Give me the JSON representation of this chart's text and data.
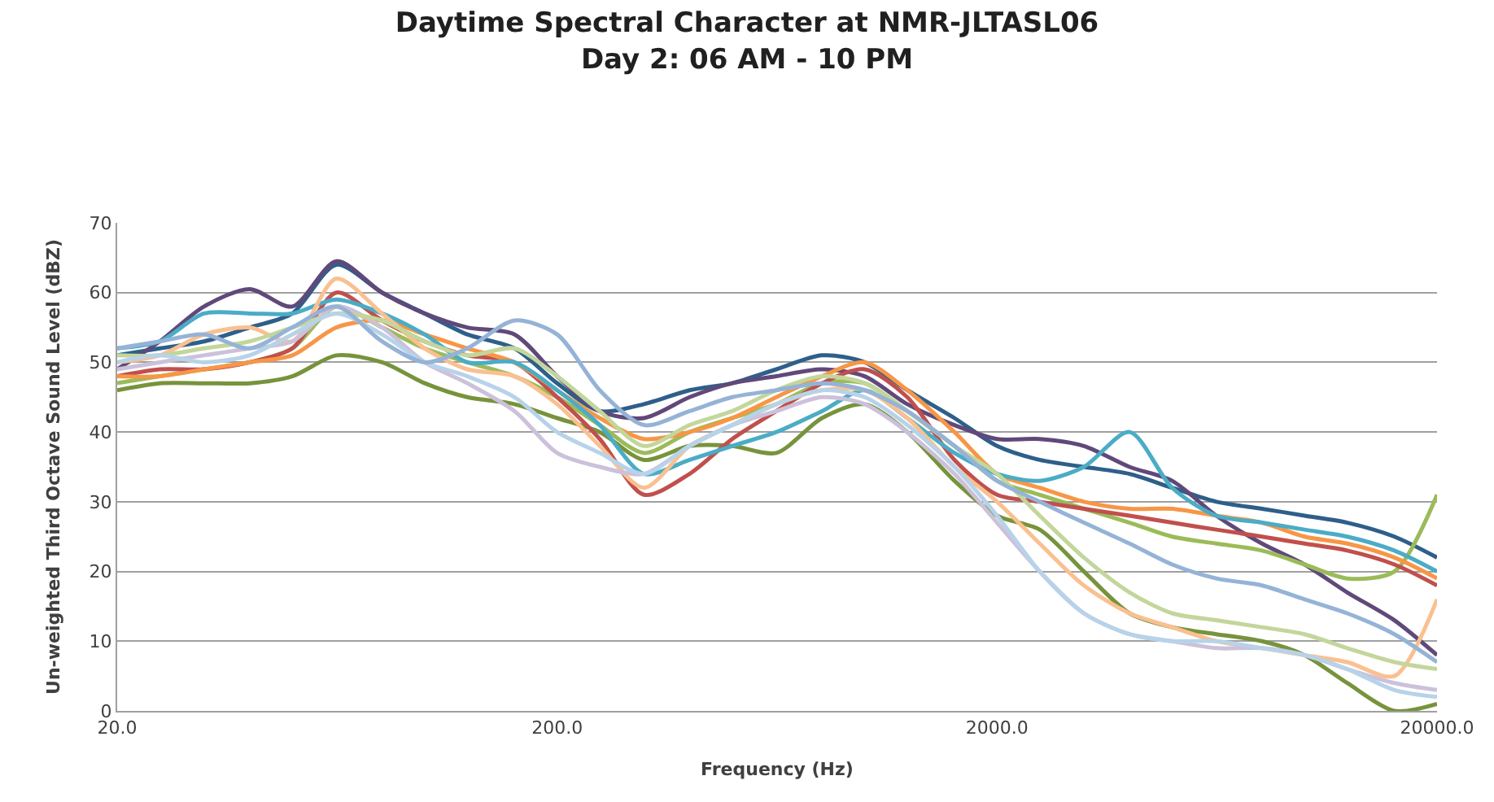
{
  "chart_data": {
    "type": "line",
    "title": "Daytime Spectral Character at NMR-JLTASL06",
    "subtitle": "Day 2: 06 AM - 10 PM",
    "xlabel": "Frequency (Hz)",
    "ylabel": "Un-weighted Third Octave Sound Level (dBZ)",
    "x": [
      20,
      25,
      31.5,
      40,
      50,
      63,
      80,
      100,
      125,
      160,
      200,
      250,
      315,
      400,
      500,
      630,
      800,
      1000,
      1250,
      1600,
      2000,
      2500,
      3150,
      4000,
      5000,
      6300,
      8000,
      10000,
      12500,
      16000,
      20000
    ],
    "series": [
      {
        "color": "#2e5f8a",
        "values": [
          51,
          52,
          53,
          55,
          57,
          64,
          60,
          57,
          54,
          52,
          47,
          43,
          44,
          46,
          47,
          49,
          51,
          50,
          46,
          42,
          38,
          36,
          35,
          34,
          32,
          30,
          29,
          28,
          27,
          25,
          22
        ]
      },
      {
        "color": "#60497a",
        "values": [
          49,
          53,
          58,
          60.5,
          58,
          64.5,
          60,
          57,
          55,
          54,
          48,
          43,
          42,
          45,
          47,
          48,
          49,
          48,
          44,
          41,
          39,
          39,
          38,
          35,
          33,
          28,
          24,
          21,
          17,
          13,
          8
        ]
      },
      {
        "color": "#77933c",
        "values": [
          46,
          47,
          47,
          47,
          48,
          51,
          50,
          47,
          45,
          44,
          42,
          40,
          36,
          38,
          38,
          37,
          42,
          44,
          40,
          33,
          28,
          26,
          20,
          14,
          12,
          11,
          10,
          8,
          4,
          0,
          1
        ]
      },
      {
        "color": "#9bbb59",
        "values": [
          47,
          48,
          49,
          50,
          52,
          58,
          55,
          52,
          50,
          48,
          45,
          41,
          37,
          40,
          42,
          44,
          47,
          47,
          43,
          38,
          33,
          31,
          29,
          27,
          25,
          24,
          23,
          21,
          19,
          20,
          31
        ]
      },
      {
        "color": "#c0504d",
        "values": [
          48,
          49,
          49,
          50,
          52,
          60,
          56,
          53,
          51,
          50,
          45,
          39,
          31,
          34,
          39,
          43,
          47,
          49,
          45,
          36,
          31,
          30,
          29,
          28,
          27,
          26,
          25,
          24,
          23,
          21,
          18
        ]
      },
      {
        "color": "#f79646",
        "values": [
          48,
          48,
          49,
          50,
          51,
          55,
          56,
          54,
          52,
          50,
          46,
          42,
          39,
          40,
          42,
          45,
          48,
          50,
          46,
          40,
          34,
          32,
          30,
          29,
          29,
          28,
          27,
          25,
          24,
          22,
          19
        ]
      },
      {
        "color": "#4bacc6",
        "values": [
          52,
          53,
          57,
          57,
          57,
          59,
          57,
          54,
          50,
          50,
          46,
          41,
          34,
          36,
          38,
          40,
          43,
          46,
          42,
          37,
          34,
          33,
          35,
          40,
          32,
          28,
          27,
          26,
          25,
          23,
          20
        ]
      },
      {
        "color": "#fac090",
        "values": [
          50,
          51,
          54,
          55,
          53,
          62,
          57,
          52,
          49,
          48,
          44,
          38,
          32,
          38,
          41,
          44,
          46,
          46,
          42,
          35,
          30,
          24,
          18,
          14,
          12,
          10,
          9,
          8,
          7,
          5,
          16
        ]
      },
      {
        "color": "#ccc1da",
        "values": [
          49,
          50,
          51,
          52,
          53,
          58,
          55,
          50,
          47,
          43,
          37,
          35,
          34,
          38,
          41,
          43,
          45,
          44,
          40,
          34,
          27,
          20,
          14,
          11,
          10,
          9,
          9,
          8,
          6,
          4,
          3
        ]
      },
      {
        "color": "#c3d69b",
        "values": [
          51,
          51,
          52,
          53,
          55,
          57,
          56,
          53,
          51,
          52,
          48,
          43,
          38,
          41,
          43,
          46,
          48,
          47,
          43,
          38,
          34,
          28,
          22,
          17,
          14,
          13,
          12,
          11,
          9,
          7,
          6
        ]
      },
      {
        "color": "#b7d3e9",
        "values": [
          50,
          51,
          50,
          51,
          54,
          57,
          54,
          50,
          48,
          45,
          40,
          37,
          34,
          38,
          41,
          44,
          46,
          45,
          41,
          35,
          28,
          20,
          14,
          11,
          10,
          10,
          9,
          8,
          6,
          3,
          2
        ]
      },
      {
        "color": "#95b3d7",
        "values": [
          52,
          53,
          54,
          52,
          55,
          58,
          53,
          50,
          52,
          56,
          54,
          46,
          41,
          43,
          45,
          46,
          47,
          46,
          43,
          38,
          33,
          30,
          27,
          24,
          21,
          19,
          18,
          16,
          14,
          11,
          7
        ]
      }
    ],
    "xlim": [
      20,
      20000
    ],
    "xticks": [
      {
        "value": 20,
        "label": "20.0"
      },
      {
        "value": 200,
        "label": "200.0"
      },
      {
        "value": 2000,
        "label": "2000.0"
      },
      {
        "value": 20000,
        "label": "20000.0"
      }
    ],
    "ylim": [
      0,
      70
    ],
    "yticks": [
      0,
      10,
      20,
      30,
      40,
      50,
      60,
      70
    ],
    "log": "x",
    "grid": "y",
    "marker": "none",
    "line_style": "solid"
  }
}
